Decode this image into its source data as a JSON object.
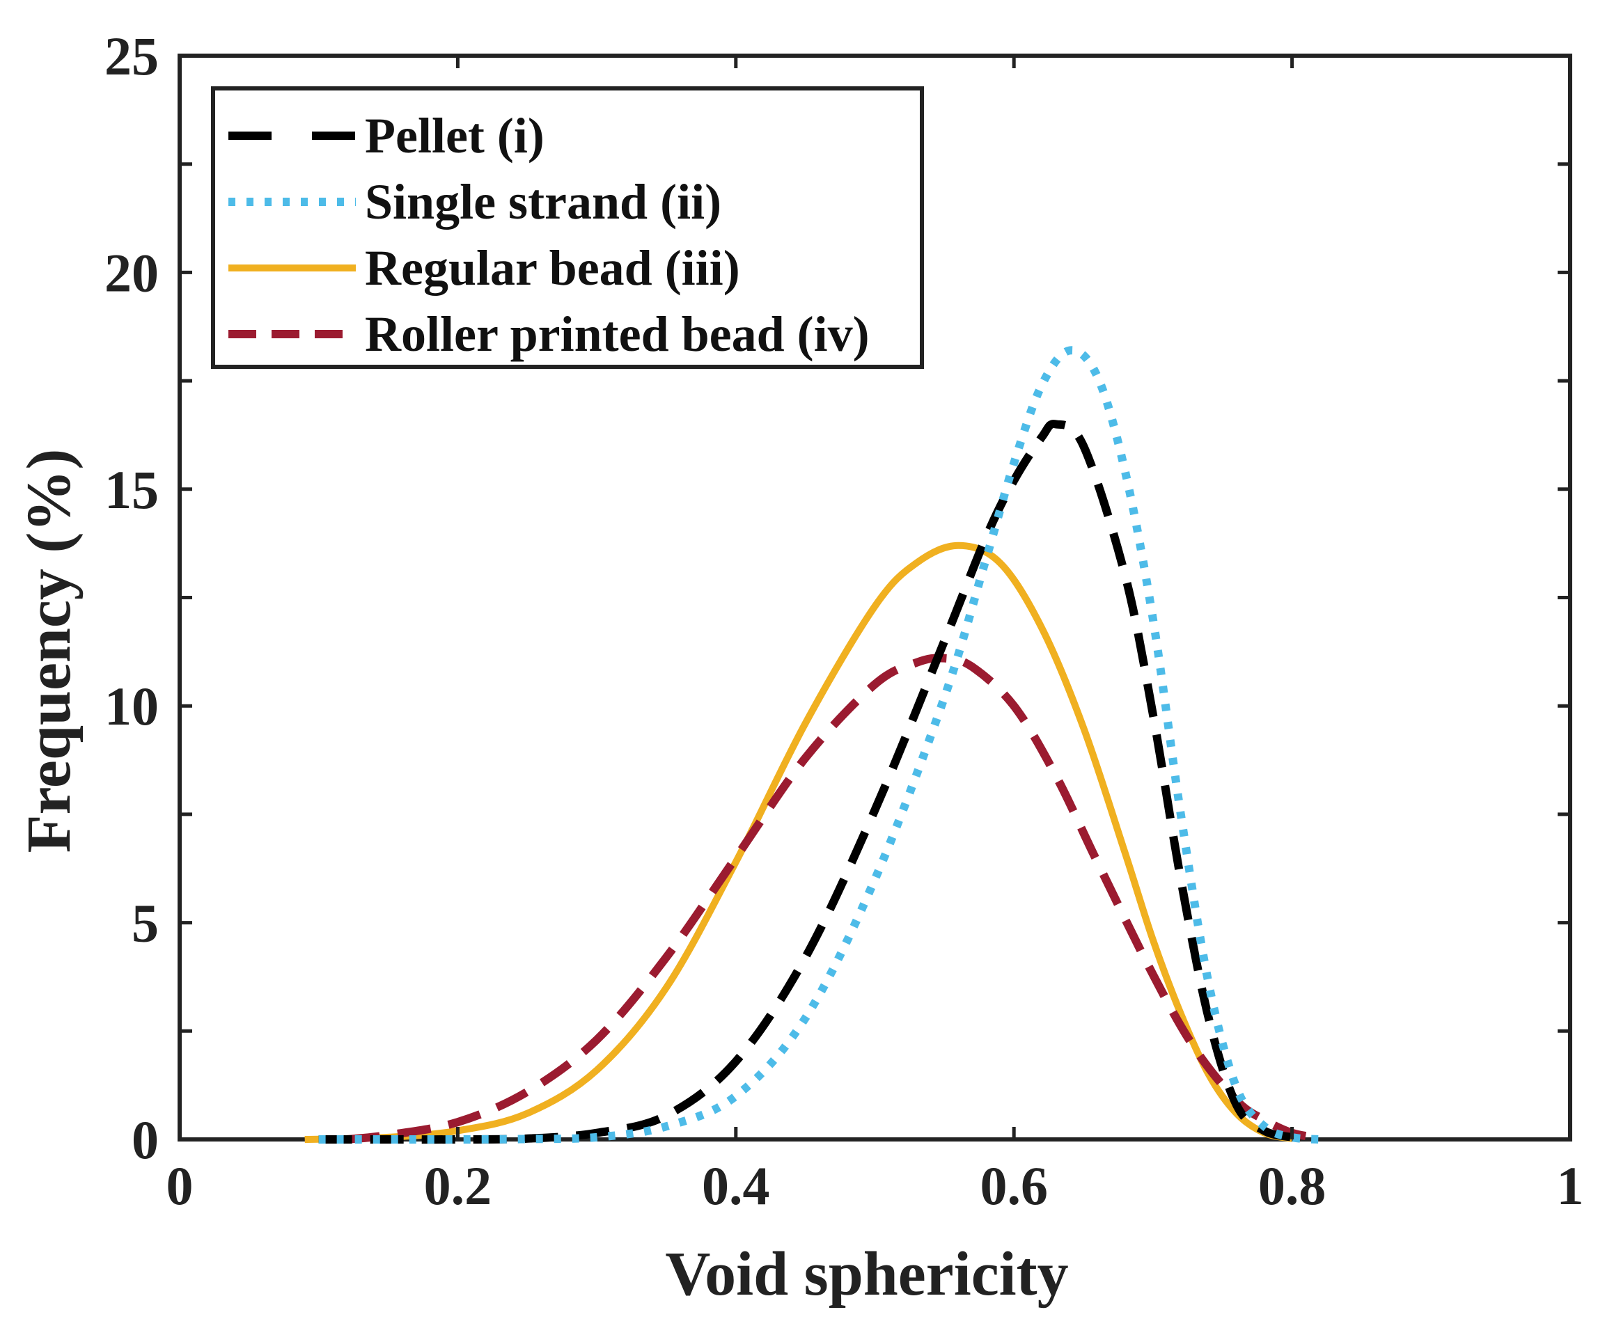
{
  "chart_data": {
    "type": "line",
    "title": "",
    "xlabel": "Void sphericity",
    "ylabel": "Frequency (%)",
    "xlim": [
      0,
      1
    ],
    "ylim": [
      0,
      25
    ],
    "x_ticks": [
      0,
      0.2,
      0.4,
      0.6,
      0.8,
      1
    ],
    "x_tick_labels": [
      "0",
      "0.2",
      "0.4",
      "0.6",
      "0.8",
      "1"
    ],
    "y_ticks": [
      0,
      5,
      10,
      15,
      20,
      25
    ],
    "y_tick_labels": [
      "0",
      "5",
      "10",
      "15",
      "20",
      "25"
    ],
    "grid": false,
    "legend_position": "top-left",
    "series": [
      {
        "name": "Pellet (i)",
        "color": "#000000",
        "line_style": "dashed",
        "x": [
          0.1,
          0.15,
          0.2,
          0.25,
          0.3,
          0.35,
          0.4,
          0.45,
          0.5,
          0.55,
          0.58,
          0.6,
          0.62,
          0.63,
          0.65,
          0.68,
          0.7,
          0.72,
          0.74,
          0.76,
          0.78,
          0.8
        ],
        "y": [
          0,
          0,
          0,
          0.02,
          0.15,
          0.55,
          1.8,
          4.2,
          7.6,
          11.5,
          13.9,
          15.2,
          16.2,
          16.5,
          16.0,
          13.0,
          9.8,
          6.0,
          2.8,
          0.8,
          0.2,
          0.05
        ]
      },
      {
        "name": "Single strand (ii)",
        "color": "#4dbbe8",
        "line_style": "dotted",
        "x": [
          0.1,
          0.15,
          0.2,
          0.25,
          0.3,
          0.35,
          0.4,
          0.45,
          0.5,
          0.55,
          0.58,
          0.6,
          0.62,
          0.64,
          0.66,
          0.68,
          0.7,
          0.72,
          0.74,
          0.76,
          0.78,
          0.8,
          0.82
        ],
        "y": [
          0,
          0,
          0,
          0.01,
          0.05,
          0.3,
          1.0,
          2.8,
          6.0,
          10.2,
          13.4,
          15.6,
          17.4,
          18.2,
          17.6,
          15.4,
          12.0,
          7.5,
          3.6,
          1.2,
          0.3,
          0.05,
          0
        ]
      },
      {
        "name": "Regular bead (iii)",
        "color": "#f0b020",
        "line_style": "solid",
        "x": [
          0.09,
          0.15,
          0.2,
          0.25,
          0.3,
          0.35,
          0.4,
          0.45,
          0.5,
          0.53,
          0.56,
          0.59,
          0.62,
          0.65,
          0.68,
          0.7,
          0.72,
          0.74,
          0.76,
          0.78,
          0.8
        ],
        "y": [
          0,
          0.05,
          0.2,
          0.6,
          1.6,
          3.5,
          6.4,
          9.6,
          12.3,
          13.3,
          13.7,
          13.3,
          11.8,
          9.5,
          6.6,
          4.6,
          2.9,
          1.5,
          0.6,
          0.15,
          0.02
        ]
      },
      {
        "name": "Roller printed bead (iv)",
        "color": "#9b1b30",
        "line_style": "dashed",
        "x": [
          0.12,
          0.15,
          0.2,
          0.25,
          0.3,
          0.35,
          0.4,
          0.45,
          0.5,
          0.53,
          0.55,
          0.57,
          0.6,
          0.63,
          0.66,
          0.7,
          0.73,
          0.76,
          0.78,
          0.8,
          0.82
        ],
        "y": [
          0,
          0.1,
          0.4,
          1.1,
          2.3,
          4.2,
          6.5,
          8.8,
          10.5,
          11.0,
          11.1,
          10.9,
          10.0,
          8.4,
          6.4,
          3.8,
          2.1,
          0.9,
          0.45,
          0.15,
          0.03
        ]
      }
    ]
  }
}
